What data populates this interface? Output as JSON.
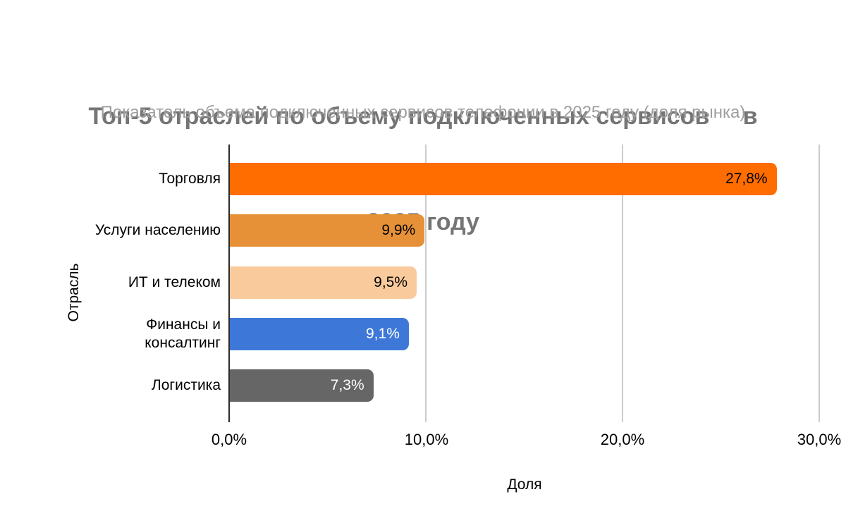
{
  "header": {
    "title_lines": [
      "Топ-5 отраслей по объему подключенных сервисов     в",
      "2025 году"
    ],
    "subtitle": "Показатель объема подключенных сервисов телефонии в 2025 году (доля рынка)"
  },
  "colors": {
    "title_text": "#757575",
    "subtitle_text": "#9e9e9e",
    "gridline": "#cccccc",
    "baseline": "#2b2b2b",
    "axis_text": "#000000"
  },
  "chart_data": {
    "type": "bar",
    "orientation": "horizontal",
    "title": "Топ-5 отраслей по объему подключенных сервисов в 2025 году",
    "subtitle": "Показатель объема подключенных сервисов телефонии в 2025 году (доля рынка)",
    "xlabel": "Доля",
    "ylabel": "Отрасль",
    "xlim": [
      0,
      30
    ],
    "grid": true,
    "legend": "none",
    "x_ticks": [
      "0,0%",
      "10,0%",
      "20,0%",
      "30,0%"
    ],
    "x_tick_values": [
      0,
      10,
      20,
      30
    ],
    "categories": [
      "Торговля",
      "Услуги населению",
      "ИТ и телеком",
      "Финансы и консалтинг",
      "Логистика"
    ],
    "values": [
      27.8,
      9.9,
      9.5,
      9.1,
      7.3
    ],
    "bars": [
      {
        "category": "Торговля",
        "category_display": "Торговля",
        "value": 27.8,
        "label": "27,8%",
        "color": "#ff6d01",
        "label_color": "#000000"
      },
      {
        "category": "Услуги населению",
        "category_display": "Услуги населению",
        "value": 9.9,
        "label": "9,9%",
        "color": "#e69138",
        "label_color": "#000000"
      },
      {
        "category": "ИТ и телеком",
        "category_display": "ИТ и телеком",
        "value": 9.5,
        "label": "9,5%",
        "color": "#f9cb9c",
        "label_color": "#000000"
      },
      {
        "category": "Финансы и консалтинг",
        "category_display": "Финансы и\nконсалтинг",
        "value": 9.1,
        "label": "9,1%",
        "color": "#3d78d8",
        "label_color": "#ffffff"
      },
      {
        "category": "Логистика",
        "category_display": "Логистика",
        "value": 7.3,
        "label": "7,3%",
        "color": "#666666",
        "label_color": "#ffffff"
      }
    ]
  }
}
